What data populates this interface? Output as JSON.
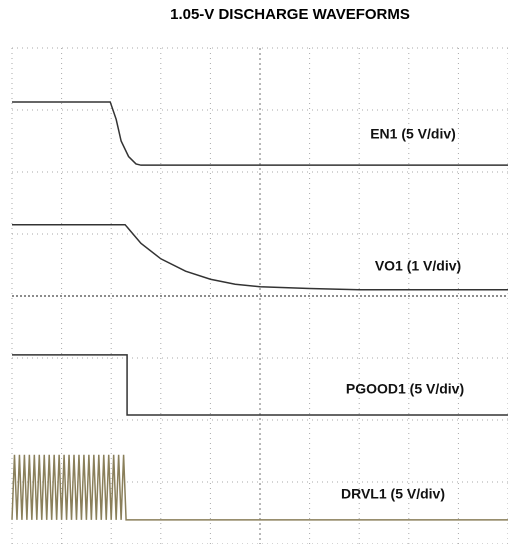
{
  "chart_data": {
    "type": "line",
    "title": "1.05-V DISCHARGE WAVEFORMS",
    "xlim": [
      0,
      10
    ],
    "ylim": [
      0,
      8
    ],
    "xticks": [
      0,
      1,
      2,
      3,
      4,
      5,
      6,
      7,
      8,
      9,
      10
    ],
    "yticks": [
      0,
      1,
      2,
      3,
      4,
      5,
      6,
      7,
      8
    ],
    "grid": true,
    "series": [
      {
        "name": "EN1 (5 V/div)",
        "color": "#333333",
        "x": [
          0,
          1.98,
          2.1,
          2.2,
          2.35,
          2.5,
          2.6,
          10
        ],
        "values": [
          7.13,
          7.13,
          6.85,
          6.5,
          6.25,
          6.13,
          6.11,
          6.11
        ]
      },
      {
        "name": "VO1 (1 V/div)",
        "color": "#333333",
        "x": [
          0,
          2.28,
          2.6,
          3,
          3.5,
          4,
          4.5,
          5,
          6,
          7,
          8,
          10
        ],
        "values": [
          5.15,
          5.15,
          4.85,
          4.6,
          4.4,
          4.27,
          4.19,
          4.15,
          4.12,
          4.1,
          4.1,
          4.1
        ]
      },
      {
        "name": "PGOOD1 (5 V/div)",
        "color": "#333333",
        "x": [
          0,
          2.32,
          2.32,
          10
        ],
        "values": [
          3.05,
          3.05,
          2.08,
          2.08
        ]
      },
      {
        "name": "DRVL1 (5 V/div)",
        "color": "#8a7f5a",
        "x": [
          0,
          0.05,
          0.1,
          0.15,
          0.2,
          0.25,
          0.3,
          0.35,
          0.4,
          0.45,
          0.5,
          0.55,
          0.6,
          0.65,
          0.7,
          0.75,
          0.8,
          0.85,
          0.9,
          0.95,
          1,
          1.05,
          1.1,
          1.15,
          1.2,
          1.25,
          1.3,
          1.35,
          1.4,
          1.45,
          1.5,
          1.55,
          1.6,
          1.65,
          1.7,
          1.75,
          1.8,
          1.85,
          1.9,
          1.95,
          2,
          2.05,
          2.1,
          2.15,
          2.2,
          2.25,
          2.3,
          2.32,
          10
        ],
        "values": [
          0.39,
          1.44,
          0.39,
          1.44,
          0.39,
          1.44,
          0.39,
          1.44,
          0.39,
          1.44,
          0.39,
          1.44,
          0.39,
          1.44,
          0.39,
          1.44,
          0.39,
          1.44,
          0.39,
          1.44,
          0.39,
          1.44,
          0.39,
          1.44,
          0.39,
          1.44,
          0.39,
          1.44,
          0.39,
          1.44,
          0.39,
          1.44,
          0.39,
          1.44,
          0.39,
          1.44,
          0.39,
          1.44,
          0.39,
          1.44,
          0.39,
          1.44,
          0.39,
          1.44,
          0.39,
          1.44,
          0.39,
          0.39,
          0.39
        ]
      }
    ]
  }
}
